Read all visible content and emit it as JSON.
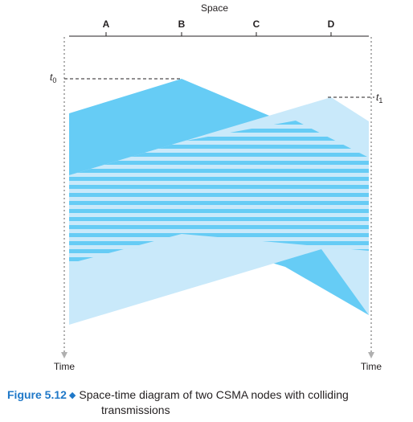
{
  "diagram": {
    "axis_label": "Space",
    "nodes": [
      "A",
      "B",
      "C",
      "D"
    ],
    "time_left": "Time",
    "time_right": "Time",
    "t0": {
      "base": "t",
      "sub": "0"
    },
    "t1": {
      "base": "t",
      "sub": "1"
    },
    "colors": {
      "dark": "#66ccf5",
      "light": "#c9e9fa",
      "stripe": "#ffffff",
      "axis": "#231f20",
      "timeline": "#b0b0b0"
    }
  },
  "caption": {
    "label": "Figure 5.12",
    "line1": "Space-time diagram of two CSMA nodes with colliding",
    "line2": "transmissions"
  }
}
